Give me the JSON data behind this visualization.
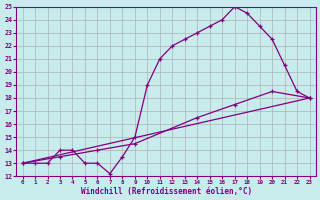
{
  "xlabel": "Windchill (Refroidissement éolien,°C)",
  "bg_color": "#c8ecec",
  "line_color": "#800080",
  "grid_color": "#b0b0b0",
  "xlim": [
    -0.5,
    23.5
  ],
  "ylim": [
    12,
    25
  ],
  "xticks": [
    0,
    1,
    2,
    3,
    4,
    5,
    6,
    7,
    8,
    9,
    10,
    11,
    12,
    13,
    14,
    15,
    16,
    17,
    18,
    19,
    20,
    21,
    22,
    23
  ],
  "yticks": [
    12,
    13,
    14,
    15,
    16,
    17,
    18,
    19,
    20,
    21,
    22,
    23,
    24,
    25
  ],
  "line1_x": [
    0,
    1,
    2,
    3,
    4,
    5,
    6,
    7,
    8,
    9,
    10,
    11,
    12,
    13,
    14,
    15,
    16,
    17,
    18,
    19,
    20,
    21,
    22,
    23
  ],
  "line1_y": [
    13,
    13,
    13,
    14,
    14,
    13,
    13,
    12.2,
    13.5,
    15,
    19,
    21,
    22,
    22.5,
    23,
    23.5,
    24,
    25,
    24.5,
    23.5,
    22.5,
    20.5,
    18.5,
    18
  ],
  "line2_x": [
    0,
    3,
    6,
    9,
    14,
    17,
    20,
    23
  ],
  "line2_y": [
    13,
    13.5,
    14,
    14.5,
    16.5,
    17.5,
    18.5,
    18
  ],
  "line3_x": [
    0,
    23
  ],
  "line3_y": [
    13,
    18
  ]
}
